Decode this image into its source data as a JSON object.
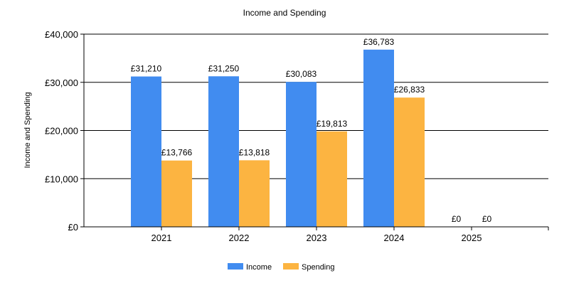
{
  "chart_data": {
    "type": "bar",
    "title": "Income and Spending",
    "xlabel": "",
    "ylabel": "Income and Spending",
    "categories": [
      "2021",
      "2022",
      "2023",
      "2024",
      "2025"
    ],
    "series": [
      {
        "name": "Income",
        "color": "#418CF0",
        "values": [
          31210,
          31250,
          30083,
          36783,
          0
        ],
        "labels": [
          "£31,210",
          "£31,250",
          "£30,083",
          "£36,783",
          "£0"
        ]
      },
      {
        "name": "Spending",
        "color": "#FCB441",
        "values": [
          13766,
          13818,
          19813,
          26833,
          0
        ],
        "labels": [
          "£13,766",
          "£13,818",
          "£19,813",
          "£26,833",
          "£0"
        ]
      }
    ],
    "ylim": [
      0,
      40000
    ],
    "yticks": [
      0,
      10000,
      20000,
      30000,
      40000
    ],
    "ytick_labels": [
      "£0",
      "£10,000",
      "£20,000",
      "£30,000",
      "£40,000"
    ],
    "grid": true,
    "legend_position": "bottom-center"
  }
}
